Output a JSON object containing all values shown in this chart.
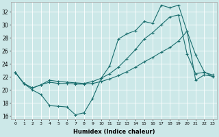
{
  "xlabel": "Humidex (Indice chaleur)",
  "bg_color": "#cce8e8",
  "line_color": "#1a6e6e",
  "grid_color": "#ffffff",
  "xlim": [
    -0.5,
    23.5
  ],
  "ylim": [
    15.5,
    33.5
  ],
  "xticks": [
    0,
    1,
    2,
    3,
    4,
    5,
    6,
    7,
    8,
    9,
    10,
    11,
    12,
    13,
    14,
    15,
    16,
    17,
    18,
    19,
    20,
    21,
    22,
    23
  ],
  "yticks": [
    16,
    18,
    20,
    22,
    24,
    26,
    28,
    30,
    32
  ],
  "line1_x": [
    0,
    1,
    2,
    3,
    4,
    5,
    6,
    7,
    8,
    9,
    10,
    11,
    12,
    13,
    14,
    15,
    16,
    17,
    18,
    19,
    20,
    21,
    22,
    23
  ],
  "line1_y": [
    22.7,
    21.0,
    20.0,
    19.3,
    17.6,
    17.5,
    17.4,
    16.2,
    16.5,
    18.7,
    21.8,
    23.7,
    27.8,
    28.6,
    29.1,
    30.5,
    30.2,
    33.0,
    32.6,
    33.0,
    29.0,
    25.4,
    22.8,
    22.0
  ],
  "line2_x": [
    0,
    1,
    2,
    3,
    4,
    5,
    6,
    7,
    8,
    9,
    10,
    11,
    12,
    13,
    14,
    15,
    16,
    17,
    18,
    19,
    20,
    21,
    22,
    23
  ],
  "line2_y": [
    22.7,
    21.0,
    20.3,
    20.8,
    21.5,
    21.3,
    21.2,
    21.1,
    21.0,
    21.3,
    21.8,
    22.5,
    23.5,
    24.8,
    26.2,
    27.8,
    28.8,
    30.0,
    31.2,
    31.5,
    25.5,
    22.5,
    22.7,
    22.3
  ],
  "line3_x": [
    0,
    1,
    2,
    3,
    4,
    5,
    6,
    7,
    8,
    9,
    10,
    11,
    12,
    13,
    14,
    15,
    16,
    17,
    18,
    19,
    20,
    21,
    22,
    23
  ],
  "line3_y": [
    22.7,
    21.0,
    20.3,
    20.8,
    21.2,
    21.0,
    21.0,
    20.9,
    20.9,
    21.0,
    21.3,
    21.7,
    22.2,
    22.8,
    23.5,
    24.3,
    25.0,
    25.8,
    26.5,
    27.5,
    29.0,
    21.5,
    22.3,
    22.1
  ]
}
